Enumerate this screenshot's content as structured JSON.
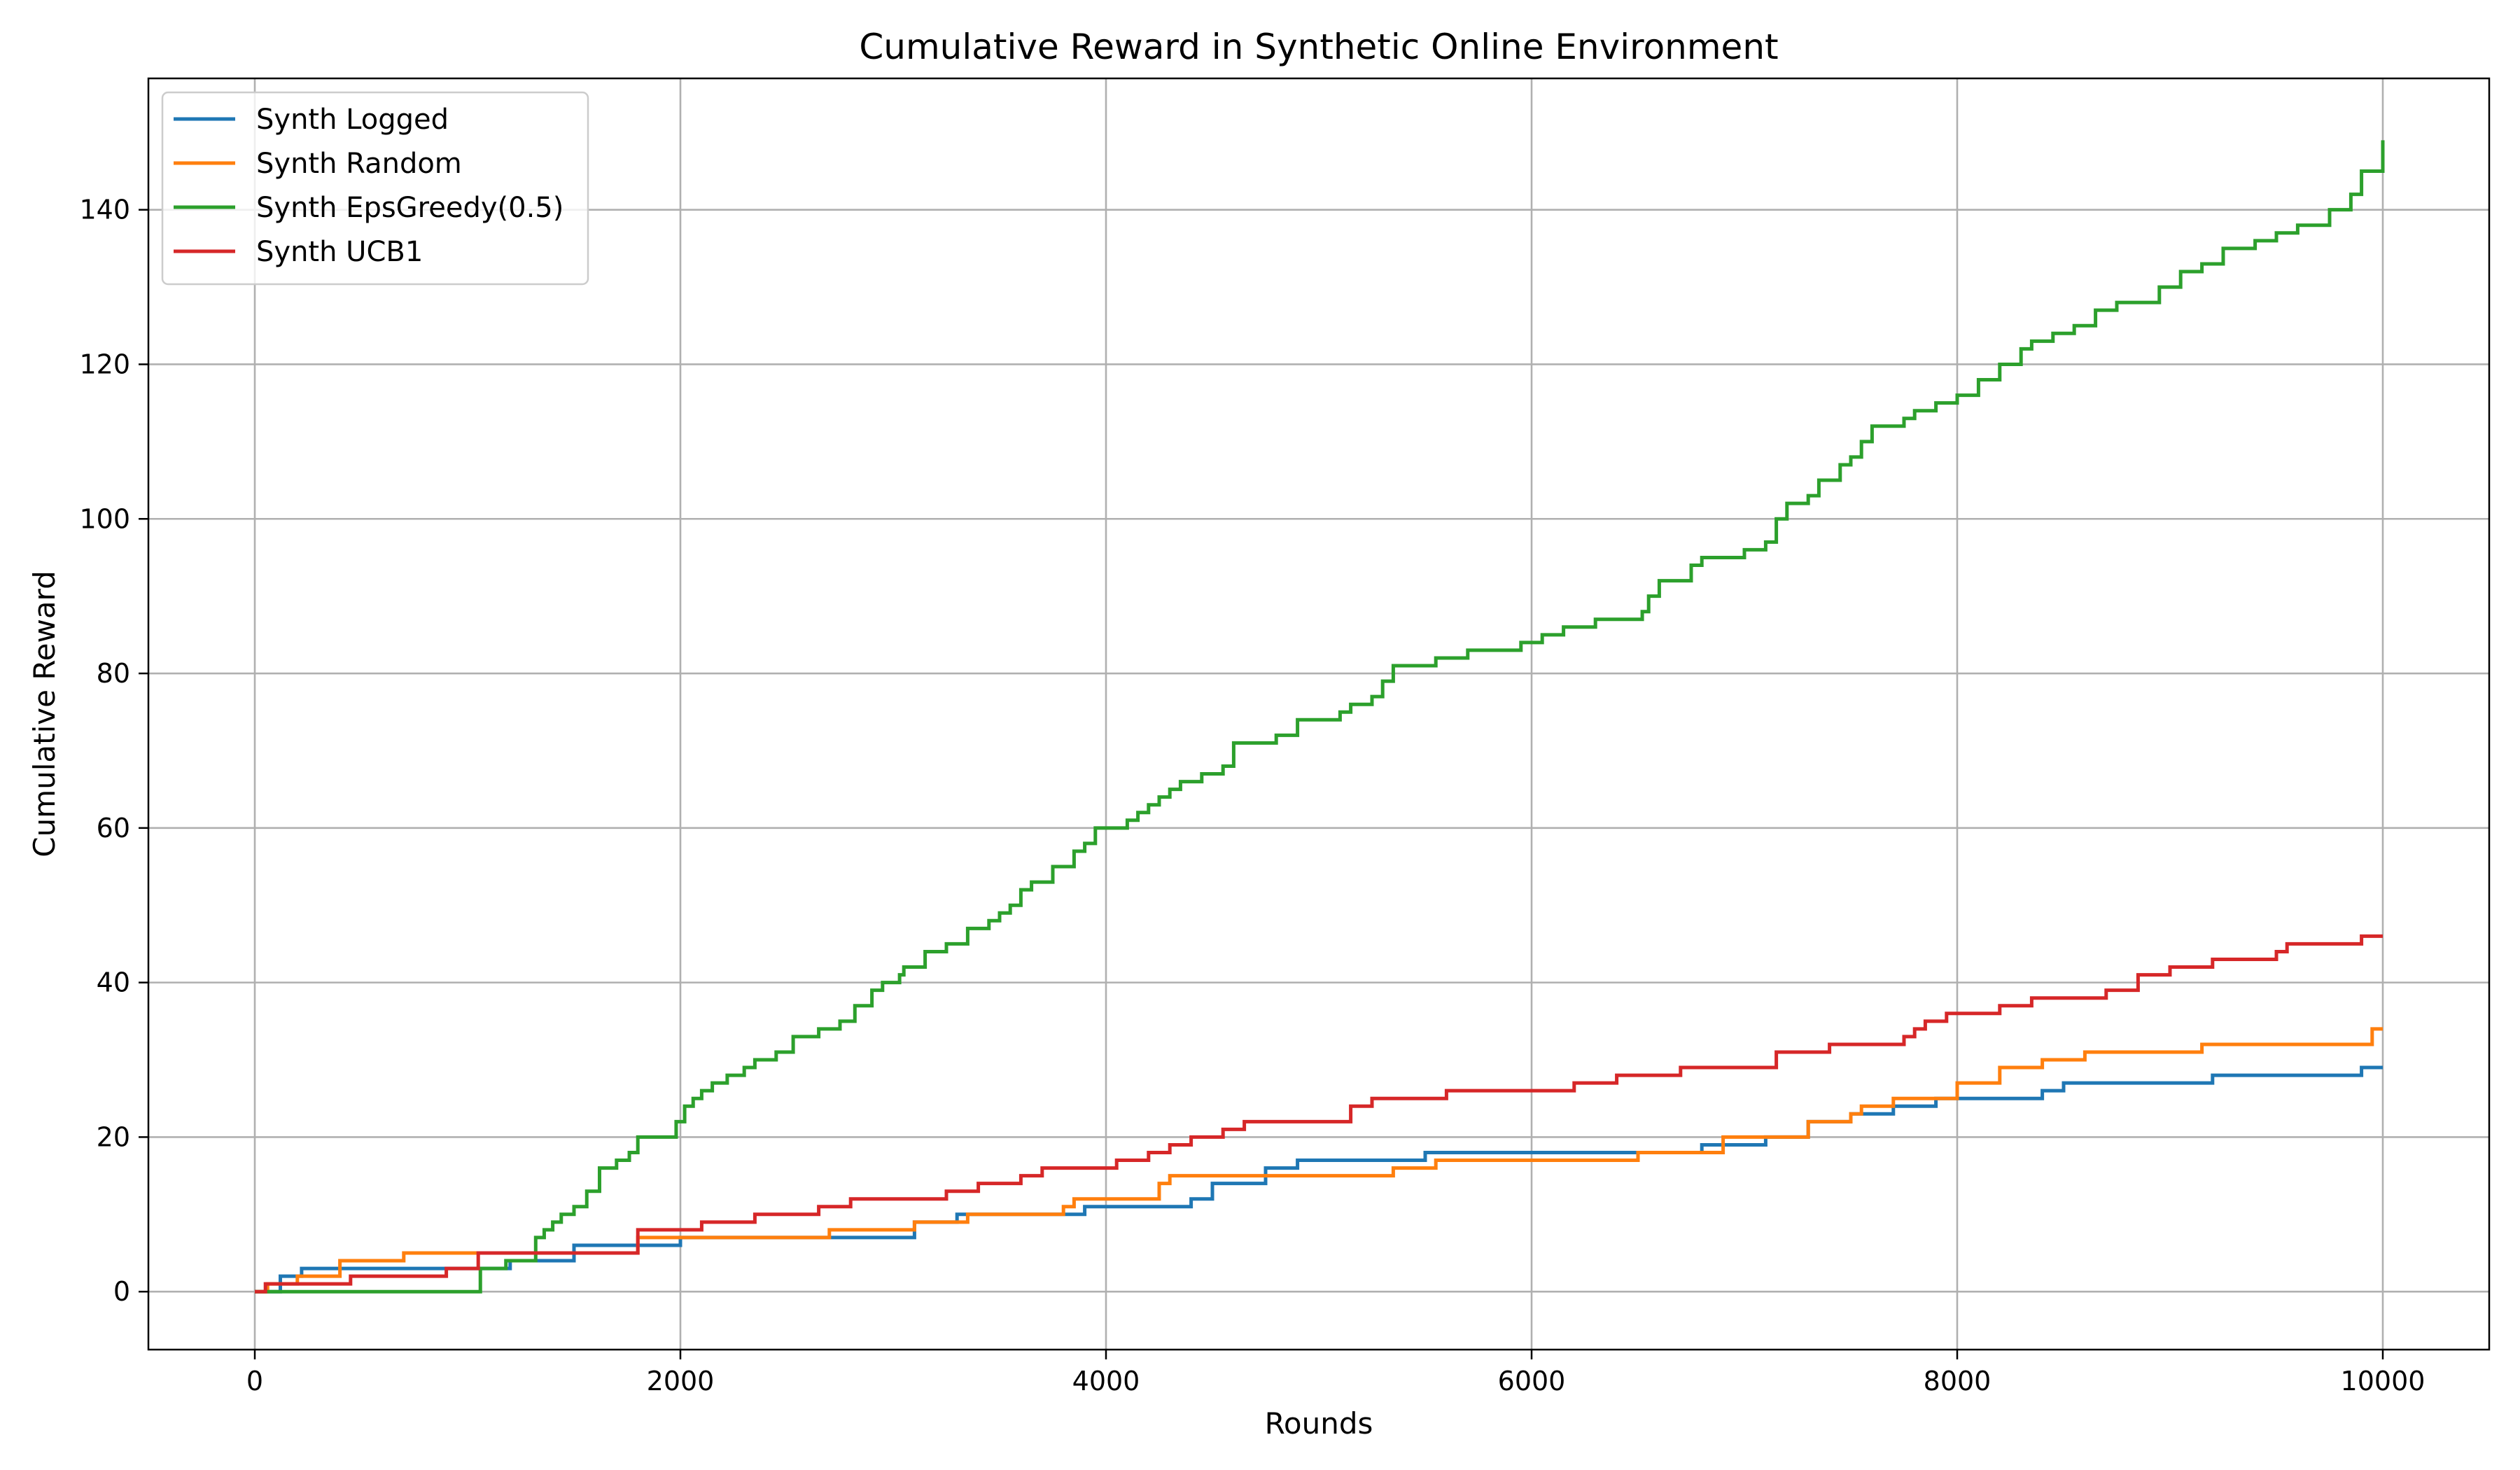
{
  "chart_data": {
    "type": "line",
    "title": "Cumulative Reward in Synthetic Online Environment",
    "xlabel": "Rounds",
    "ylabel": "Cumulative Reward",
    "xlim": [
      -500,
      10500
    ],
    "ylim": [
      -7.5,
      157
    ],
    "xticks": [
      0,
      2000,
      4000,
      6000,
      8000,
      10000
    ],
    "yticks": [
      0,
      20,
      40,
      60,
      80,
      100,
      120,
      140
    ],
    "grid": true,
    "legend_position": "top-left",
    "step": true,
    "series": [
      {
        "name": "Synth Logged",
        "color": "#1f77b4",
        "x": [
          0,
          120,
          220,
          1200,
          1500,
          1750,
          2000,
          2900,
          3100,
          3300,
          3800,
          3900,
          4400,
          4500,
          4750,
          4900,
          5050,
          5500,
          6500,
          6800,
          7100,
          7300,
          7500,
          7700,
          7800,
          7900,
          8000,
          8400,
          8500,
          9200,
          9900,
          10000
        ],
        "y": [
          0,
          2,
          3,
          4,
          6,
          6,
          7,
          7,
          9,
          10,
          10,
          11,
          12,
          14,
          16,
          17,
          17,
          18,
          18,
          19,
          20,
          22,
          23,
          24,
          24,
          25,
          25,
          26,
          27,
          28,
          29,
          29
        ]
      },
      {
        "name": "Synth Random",
        "color": "#ff7f0e",
        "x": [
          0,
          60,
          200,
          400,
          700,
          1800,
          2700,
          3100,
          3350,
          3800,
          3850,
          4250,
          4300,
          4350,
          4750,
          5350,
          5550,
          6500,
          6900,
          7300,
          7500,
          7550,
          7700,
          7950,
          8000,
          8200,
          8400,
          8600,
          9150,
          9950,
          10000
        ],
        "y": [
          0,
          1,
          2,
          4,
          5,
          7,
          8,
          9,
          10,
          11,
          12,
          14,
          15,
          15,
          15,
          16,
          17,
          18,
          20,
          22,
          23,
          24,
          25,
          25,
          27,
          29,
          30,
          31,
          32,
          34,
          34
        ]
      },
      {
        "name": "Synth EpsGreedy(0.5)",
        "color": "#2ca02c",
        "x": [
          0,
          1060,
          1090,
          1180,
          1320,
          1360,
          1400,
          1440,
          1500,
          1560,
          1620,
          1700,
          1760,
          1800,
          1930,
          1980,
          2020,
          2060,
          2100,
          2150,
          2220,
          2300,
          2350,
          2450,
          2530,
          2580,
          2650,
          2750,
          2820,
          2900,
          2950,
          3000,
          3030,
          3050,
          3150,
          3250,
          3350,
          3450,
          3500,
          3550,
          3600,
          3650,
          3750,
          3850,
          3900,
          3950,
          4050,
          4100,
          4150,
          4200,
          4250,
          4300,
          4350,
          4450,
          4550,
          4600,
          4800,
          4900,
          5100,
          5150,
          5250,
          5300,
          5350,
          5400,
          5550,
          5700,
          5950,
          6050,
          6150,
          6300,
          6500,
          6520,
          6550,
          6600,
          6700,
          6750,
          6800,
          7000,
          7100,
          7150,
          7200,
          7300,
          7350,
          7450,
          7500,
          7550,
          7600,
          7750,
          7800,
          7900,
          8000,
          8100,
          8200,
          8300,
          8350,
          8450,
          8550,
          8650,
          8750,
          8950,
          9050,
          9150,
          9250,
          9400,
          9500,
          9600,
          9750,
          9850,
          9900,
          10000
        ],
        "y": [
          0,
          3,
          3,
          4,
          7,
          8,
          9,
          10,
          11,
          13,
          16,
          17,
          18,
          20,
          20,
          22,
          24,
          25,
          26,
          27,
          28,
          29,
          30,
          31,
          33,
          33,
          34,
          35,
          37,
          39,
          40,
          40,
          41,
          42,
          44,
          45,
          47,
          48,
          49,
          50,
          52,
          53,
          55,
          57,
          58,
          60,
          60,
          61,
          62,
          63,
          64,
          65,
          66,
          67,
          68,
          71,
          72,
          74,
          75,
          76,
          77,
          79,
          81,
          81,
          82,
          83,
          84,
          85,
          86,
          87,
          87,
          88,
          90,
          92,
          92,
          94,
          95,
          96,
          97,
          100,
          102,
          103,
          105,
          107,
          108,
          110,
          112,
          113,
          114,
          115,
          116,
          118,
          120,
          122,
          123,
          124,
          125,
          127,
          128,
          130,
          132,
          133,
          135,
          136,
          137,
          138,
          140,
          142,
          145,
          149
        ]
      },
      {
        "name": "Synth UCB1",
        "color": "#d62728",
        "x": [
          0,
          50,
          450,
          900,
          1050,
          1800,
          2100,
          2350,
          2650,
          2800,
          3250,
          3400,
          3600,
          3700,
          4050,
          4200,
          4300,
          4400,
          4550,
          4650,
          5150,
          5250,
          5600,
          6200,
          6400,
          6700,
          7150,
          7400,
          7750,
          7800,
          7850,
          7950,
          8200,
          8350,
          8700,
          8850,
          9000,
          9200,
          9500,
          9550,
          9900,
          10000
        ],
        "y": [
          0,
          1,
          2,
          3,
          5,
          8,
          9,
          10,
          11,
          12,
          13,
          14,
          15,
          16,
          17,
          18,
          19,
          20,
          21,
          22,
          24,
          25,
          26,
          27,
          28,
          29,
          31,
          32,
          33,
          34,
          35,
          36,
          37,
          38,
          39,
          41,
          42,
          43,
          44,
          45,
          46,
          46
        ]
      }
    ]
  }
}
